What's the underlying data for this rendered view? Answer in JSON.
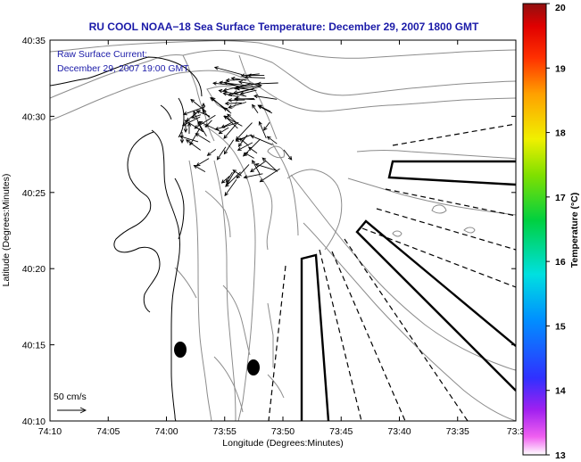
{
  "title": "RU COOL  NOAA−18  Sea Surface Temperature:  December 29, 2007 1800 GMT",
  "annotation": {
    "line1": "Raw Surface Current:",
    "line2": "December 29, 2007 19:00 GMT"
  },
  "scale_label": "50 cm/s",
  "colors": {
    "title": "#1a1aa8",
    "contour": "#8c8c8c",
    "coast": "#000000",
    "lines": "#000000"
  },
  "chart_data": {
    "type": "map",
    "xlabel": "Longitude (Degrees:Minutes)",
    "ylabel": "Latitude (Degrees:Minutes)",
    "x_ticks": [
      "74:10",
      "74:05",
      "74:00",
      "73:55",
      "73:50",
      "73:45",
      "73:40",
      "73:35",
      "73:3"
    ],
    "y_ticks": [
      "40:35",
      "40:30",
      "40:25",
      "40:20",
      "40:15",
      "40:10"
    ],
    "xlim_minutes_west": [
      70,
      30
    ],
    "ylim_minutes_north": [
      10,
      35
    ],
    "colorbar": {
      "label": "Temperature (°C)",
      "min": 13,
      "max": 20,
      "ticks": [
        "20",
        "19",
        "18",
        "17",
        "16",
        "15",
        "14",
        "13"
      ]
    }
  }
}
